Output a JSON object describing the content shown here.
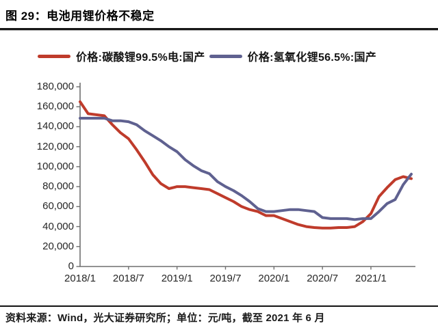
{
  "figure": {
    "title": "图 29：电池用锂价格不稳定",
    "source_note": "资料来源：Wind，光大证券研究所；单位：元/吨，截至 2021 年 6 月"
  },
  "chart_data": {
    "type": "line",
    "title": "电池用锂价格不稳定",
    "unit": "元/吨",
    "grid": false,
    "legend_position": "top",
    "ylim": [
      0,
      180000
    ],
    "y_ticks": [
      0,
      20000,
      40000,
      60000,
      80000,
      100000,
      120000,
      140000,
      160000,
      180000
    ],
    "y_tick_labels": [
      "0",
      "20,000",
      "40,000",
      "60,000",
      "80,000",
      "100,000",
      "120,000",
      "140,000",
      "160,000",
      "180,000"
    ],
    "x_tick_indices": [
      0,
      6,
      12,
      18,
      24,
      30,
      36
    ],
    "x_tick_labels": [
      "2018/1",
      "2018/7",
      "2019/1",
      "2019/7",
      "2020/1",
      "2020/7",
      "2021/1"
    ],
    "x": [
      "2018/1",
      "2018/2",
      "2018/3",
      "2018/4",
      "2018/5",
      "2018/6",
      "2018/7",
      "2018/8",
      "2018/9",
      "2018/10",
      "2018/11",
      "2018/12",
      "2019/1",
      "2019/2",
      "2019/3",
      "2019/4",
      "2019/5",
      "2019/6",
      "2019/7",
      "2019/8",
      "2019/9",
      "2019/10",
      "2019/11",
      "2019/12",
      "2020/1",
      "2020/2",
      "2020/3",
      "2020/4",
      "2020/5",
      "2020/6",
      "2020/7",
      "2020/8",
      "2020/9",
      "2020/10",
      "2020/11",
      "2020/12",
      "2021/1",
      "2021/2",
      "2021/3",
      "2021/4",
      "2021/5",
      "2021/6"
    ],
    "series": [
      {
        "name": "价格:碳酸锂99.5%电:国产",
        "color": "#bf3b2b",
        "values": [
          165000,
          153000,
          152000,
          151000,
          142000,
          134000,
          128000,
          117000,
          105000,
          92000,
          83000,
          78000,
          80000,
          80000,
          79000,
          78000,
          77000,
          73000,
          69000,
          65000,
          60000,
          57000,
          55000,
          51000,
          51000,
          48000,
          45000,
          42000,
          40000,
          39000,
          38500,
          38500,
          39000,
          39000,
          40000,
          45000,
          53000,
          70000,
          79000,
          87000,
          90000,
          88000
        ]
      },
      {
        "name": "价格:氢氧化锂56.5%:国产",
        "color": "#5f6190",
        "values": [
          148500,
          148500,
          148500,
          148500,
          146000,
          146000,
          145000,
          142000,
          136000,
          131000,
          126000,
          120000,
          115000,
          107000,
          101000,
          96000,
          93000,
          85000,
          80000,
          76000,
          71000,
          65000,
          58000,
          55000,
          55000,
          56000,
          57000,
          57000,
          56000,
          55000,
          49000,
          48000,
          48000,
          48000,
          47000,
          48000,
          48000,
          55000,
          63000,
          67000,
          82000,
          92500
        ]
      }
    ],
    "axis_color": "#6f6f6f"
  }
}
